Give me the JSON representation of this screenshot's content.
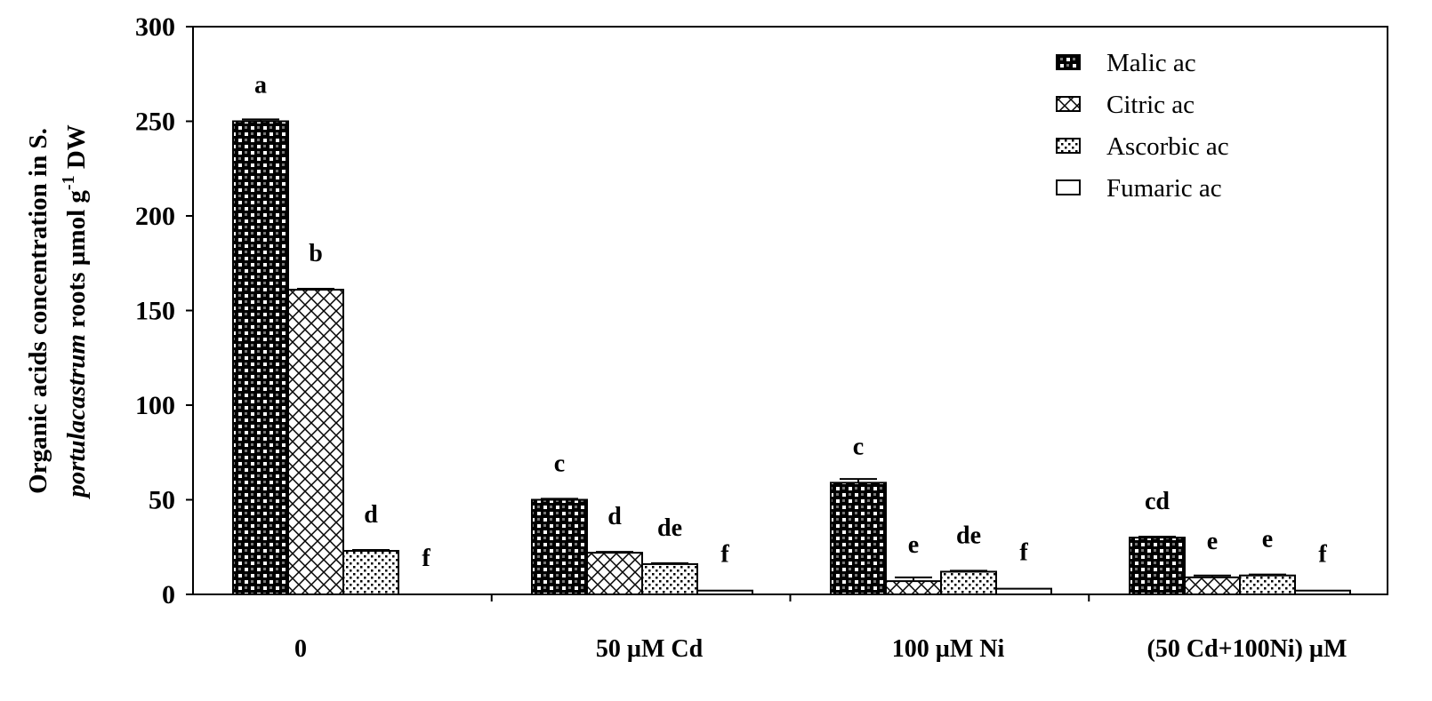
{
  "chart_data": {
    "type": "bar",
    "ylabel_line1": "Organic acids concentration in S.",
    "ylabel_line2_italic": "portulacastrum",
    "ylabel_line2_rest": " roots µmol g",
    "ylabel_sup": "-1",
    "ylabel_tail": " DW",
    "ylim": [
      0,
      300
    ],
    "yticks": [
      0,
      50,
      100,
      150,
      200,
      250,
      300
    ],
    "categories": [
      "0",
      "50 µM Cd",
      "100 µM Ni",
      "(50 Cd+100Ni) µM"
    ],
    "series": [
      {
        "name": "Malic ac",
        "pattern": "checker",
        "values": [
          250,
          50,
          59,
          30
        ],
        "errors": [
          1,
          0.5,
          2,
          0.5
        ],
        "labels": [
          "a",
          "c",
          "c",
          "cd"
        ]
      },
      {
        "name": "Citric ac",
        "pattern": "crosshatch",
        "values": [
          161,
          22,
          7,
          9
        ],
        "errors": [
          0.5,
          0.5,
          2,
          1
        ],
        "labels": [
          "b",
          "d",
          "e",
          "e"
        ]
      },
      {
        "name": "Ascorbic ac",
        "pattern": "dots",
        "values": [
          23,
          16,
          12,
          10
        ],
        "errors": [
          0.5,
          0.5,
          0.5,
          0.5
        ],
        "labels": [
          "d",
          "de",
          "de",
          "e"
        ]
      },
      {
        "name": "Fumaric ac",
        "pattern": "none",
        "values": [
          0,
          2,
          3,
          2
        ],
        "errors": [
          0,
          0,
          0,
          0
        ],
        "labels": [
          "f",
          "f",
          "f",
          "f"
        ]
      }
    ],
    "legend": "top-right",
    "grid": false
  }
}
